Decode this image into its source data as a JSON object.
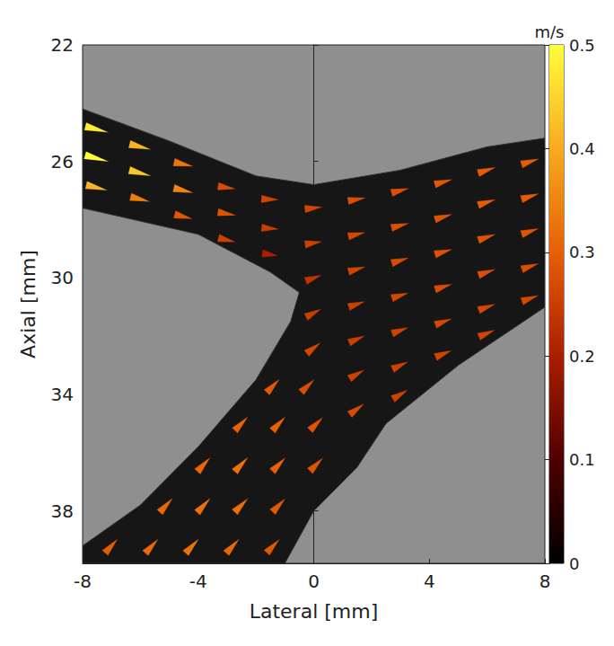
{
  "chart_data": {
    "type": "quiver",
    "x_label": "Lateral [mm]",
    "y_label": "Axial [mm]",
    "xlim": [
      -8,
      8
    ],
    "xticks": [
      -8,
      -4,
      0,
      4,
      8
    ],
    "ylim": [
      22,
      39.8
    ],
    "yticks": [
      22,
      26,
      30,
      34,
      38
    ],
    "colorbar": {
      "label": "m/s",
      "lim": [
        0,
        0.5
      ],
      "ticks": [
        0,
        0.1,
        0.2,
        0.3,
        0.4,
        0.5
      ]
    },
    "vessel": [
      [
        -8,
        24.2
      ],
      [
        -5,
        25.3
      ],
      [
        -2,
        26.5
      ],
      [
        0,
        26.8
      ],
      [
        3,
        26.3
      ],
      [
        6,
        25.5
      ],
      [
        8,
        25.2
      ],
      [
        8,
        31
      ],
      [
        5,
        33
      ],
      [
        2.5,
        35
      ],
      [
        1.5,
        36.5
      ],
      [
        0,
        38
      ],
      [
        -1,
        39.8
      ],
      [
        -8,
        39.8
      ],
      [
        -8,
        39.2
      ],
      [
        -6,
        37.8
      ],
      [
        -4,
        35.8
      ],
      [
        -2,
        33.5
      ],
      [
        -0.8,
        31.5
      ],
      [
        -0.5,
        30.5
      ],
      [
        -1.5,
        29.8
      ],
      [
        -4,
        28.5
      ],
      [
        -8,
        27.6
      ]
    ],
    "vectors": [
      [
        -7.5,
        24.9,
        0.46,
        0.12
      ],
      [
        -7.5,
        25.9,
        0.48,
        0.13
      ],
      [
        -7.5,
        26.9,
        0.4,
        0.1
      ],
      [
        -6,
        25.5,
        0.4,
        0.1
      ],
      [
        -6,
        26.4,
        0.42,
        0.11
      ],
      [
        -6,
        27.3,
        0.33,
        0.08
      ],
      [
        -4.5,
        26.1,
        0.32,
        0.07
      ],
      [
        -4.5,
        27.0,
        0.34,
        0.08
      ],
      [
        -4.5,
        27.9,
        0.28,
        0.07
      ],
      [
        -3,
        26.9,
        0.27,
        0.04
      ],
      [
        -3,
        27.8,
        0.28,
        0.05
      ],
      [
        -3,
        28.7,
        0.25,
        0.06
      ],
      [
        -1.5,
        27.3,
        0.26,
        0.01
      ],
      [
        -1.5,
        28.3,
        0.25,
        0.02
      ],
      [
        -1.5,
        29.2,
        0.2,
        0.03
      ],
      [
        0,
        27.6,
        0.26,
        -0.03
      ],
      [
        0,
        28.8,
        0.25,
        -0.04
      ],
      [
        0,
        30.0,
        0.22,
        -0.08
      ],
      [
        0,
        31.2,
        0.22,
        -0.12
      ],
      [
        0,
        32.4,
        0.21,
        -0.16
      ],
      [
        1.5,
        27.3,
        0.27,
        -0.05
      ],
      [
        1.5,
        28.5,
        0.26,
        -0.06
      ],
      [
        1.5,
        29.7,
        0.25,
        -0.07
      ],
      [
        1.5,
        30.9,
        0.24,
        -0.08
      ],
      [
        1.5,
        32.1,
        0.23,
        -0.1
      ],
      [
        1.5,
        33.3,
        0.22,
        -0.13
      ],
      [
        1.5,
        34.5,
        0.22,
        -0.16
      ],
      [
        3,
        27.0,
        0.27,
        -0.07
      ],
      [
        3,
        28.2,
        0.27,
        -0.07
      ],
      [
        3,
        29.4,
        0.26,
        -0.08
      ],
      [
        3,
        30.6,
        0.25,
        -0.08
      ],
      [
        3,
        31.8,
        0.24,
        -0.09
      ],
      [
        3,
        33.0,
        0.23,
        -0.11
      ],
      [
        3,
        34.0,
        0.22,
        -0.13
      ],
      [
        4.5,
        26.7,
        0.28,
        -0.08
      ],
      [
        4.5,
        27.9,
        0.27,
        -0.08
      ],
      [
        4.5,
        29.1,
        0.27,
        -0.08
      ],
      [
        4.5,
        30.3,
        0.26,
        -0.08
      ],
      [
        4.5,
        31.5,
        0.25,
        -0.09
      ],
      [
        4.5,
        32.6,
        0.24,
        -0.1
      ],
      [
        6,
        26.3,
        0.28,
        -0.09
      ],
      [
        6,
        27.4,
        0.28,
        -0.09
      ],
      [
        6,
        28.6,
        0.27,
        -0.09
      ],
      [
        6,
        29.8,
        0.26,
        -0.09
      ],
      [
        6,
        31.0,
        0.25,
        -0.09
      ],
      [
        6,
        31.9,
        0.24,
        -0.1
      ],
      [
        7.5,
        26.0,
        0.28,
        -0.09
      ],
      [
        7.5,
        27.2,
        0.28,
        -0.09
      ],
      [
        7.5,
        28.4,
        0.27,
        -0.09
      ],
      [
        7.5,
        29.6,
        0.26,
        -0.09
      ],
      [
        7.5,
        30.7,
        0.25,
        -0.09
      ],
      [
        -7,
        39.2,
        0.2,
        -0.22
      ],
      [
        -5.6,
        39.2,
        0.21,
        -0.23
      ],
      [
        -4.2,
        39.2,
        0.22,
        -0.24
      ],
      [
        -2.8,
        39.2,
        0.21,
        -0.23
      ],
      [
        -1.4,
        39.2,
        0.2,
        -0.21
      ],
      [
        -5.1,
        37.8,
        0.21,
        -0.23
      ],
      [
        -3.8,
        37.8,
        0.22,
        -0.24
      ],
      [
        -2.5,
        37.8,
        0.22,
        -0.23
      ],
      [
        -1.2,
        37.8,
        0.2,
        -0.21
      ],
      [
        -3.8,
        36.4,
        0.21,
        -0.23
      ],
      [
        -2.5,
        36.4,
        0.22,
        -0.24
      ],
      [
        -1.2,
        36.4,
        0.21,
        -0.22
      ],
      [
        0.1,
        36.4,
        0.2,
        -0.2
      ],
      [
        -2.5,
        35.0,
        0.21,
        -0.22
      ],
      [
        -1.2,
        35.0,
        0.21,
        -0.22
      ],
      [
        0.1,
        35.0,
        0.2,
        -0.2
      ],
      [
        -1.4,
        33.7,
        0.2,
        -0.21
      ],
      [
        -0.2,
        33.7,
        0.2,
        -0.19
      ]
    ]
  }
}
